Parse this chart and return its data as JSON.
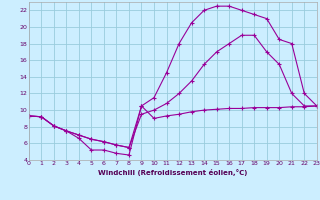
{
  "background_color": "#cceeff",
  "grid_color": "#99ccdd",
  "line_color": "#990099",
  "xlim": [
    0,
    23
  ],
  "ylim": [
    4,
    23
  ],
  "xticks": [
    0,
    1,
    2,
    3,
    4,
    5,
    6,
    7,
    8,
    9,
    10,
    11,
    12,
    13,
    14,
    15,
    16,
    17,
    18,
    19,
    20,
    21,
    22,
    23
  ],
  "yticks": [
    4,
    6,
    8,
    10,
    12,
    14,
    16,
    18,
    20,
    22
  ],
  "xlabel": "Windchill (Refroidissement éolien,°C)",
  "line1_x": [
    0,
    1,
    2,
    3,
    4,
    5,
    6,
    7,
    8,
    9,
    10,
    11,
    12,
    13,
    14,
    15,
    16,
    17,
    18,
    19,
    20,
    21,
    22,
    23
  ],
  "line1_y": [
    9.3,
    9.2,
    8.1,
    7.5,
    6.6,
    5.2,
    5.2,
    4.8,
    4.6,
    10.5,
    9.0,
    9.3,
    9.5,
    9.8,
    10.0,
    10.1,
    10.2,
    10.2,
    10.3,
    10.3,
    10.3,
    10.4,
    10.4,
    10.5
  ],
  "line2_x": [
    0,
    1,
    2,
    3,
    4,
    5,
    6,
    7,
    8,
    9,
    10,
    11,
    12,
    13,
    14,
    15,
    16,
    17,
    18,
    19,
    20,
    21,
    22,
    23
  ],
  "line2_y": [
    9.3,
    9.2,
    8.1,
    7.5,
    7.0,
    6.5,
    6.2,
    5.8,
    5.5,
    9.5,
    10.0,
    10.8,
    12.0,
    13.5,
    15.5,
    17.0,
    18.0,
    19.0,
    19.0,
    17.0,
    15.5,
    12.0,
    10.5,
    10.5
  ],
  "line3_x": [
    0,
    1,
    2,
    3,
    4,
    5,
    6,
    7,
    8,
    9,
    10,
    11,
    12,
    13,
    14,
    15,
    16,
    17,
    18,
    19,
    20,
    21,
    22,
    23
  ],
  "line3_y": [
    9.3,
    9.2,
    8.1,
    7.5,
    7.0,
    6.5,
    6.2,
    5.8,
    5.5,
    10.5,
    11.5,
    14.5,
    18.0,
    20.5,
    22.0,
    22.5,
    22.5,
    22.0,
    21.5,
    21.0,
    18.5,
    18.0,
    12.0,
    10.5
  ]
}
